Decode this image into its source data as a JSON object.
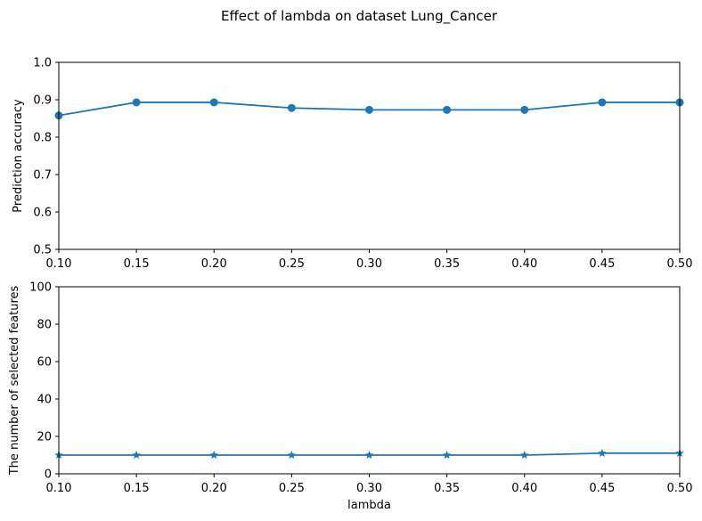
{
  "figure": {
    "suptitle": "Effect of lambda on dataset Lung_Cancer"
  },
  "chart_data": [
    {
      "type": "line",
      "marker": "circle",
      "color": "#1f77b4",
      "title": "",
      "xlabel": "",
      "ylabel": "Prediction accuracy",
      "x": [
        0.1,
        0.15,
        0.2,
        0.25,
        0.3,
        0.35,
        0.4,
        0.45,
        0.5
      ],
      "series": [
        {
          "values": [
            0.858,
            0.893,
            0.893,
            0.878,
            0.873,
            0.873,
            0.873,
            0.893,
            0.893
          ]
        }
      ],
      "xlim": [
        0.1,
        0.5
      ],
      "ylim": [
        0.5,
        1.0
      ],
      "xticks": [
        "0.10",
        "0.15",
        "0.20",
        "0.25",
        "0.30",
        "0.35",
        "0.40",
        "0.45",
        "0.50"
      ],
      "yticks": [
        "0.5",
        "0.6",
        "0.7",
        "0.8",
        "0.9",
        "1.0"
      ],
      "grid": false
    },
    {
      "type": "line",
      "marker": "star",
      "color": "#1f77b4",
      "title": "",
      "xlabel": "lambda",
      "ylabel": "The number of selected features",
      "x": [
        0.1,
        0.15,
        0.2,
        0.25,
        0.3,
        0.35,
        0.4,
        0.45,
        0.5
      ],
      "series": [
        {
          "values": [
            10,
            10,
            10,
            10,
            10,
            10,
            10,
            11,
            11
          ]
        }
      ],
      "xlim": [
        0.1,
        0.5
      ],
      "ylim": [
        0,
        100
      ],
      "xticks": [
        "0.10",
        "0.15",
        "0.20",
        "0.25",
        "0.30",
        "0.35",
        "0.40",
        "0.45",
        "0.50"
      ],
      "yticks": [
        "0",
        "20",
        "40",
        "60",
        "80",
        "100"
      ],
      "grid": false
    }
  ]
}
